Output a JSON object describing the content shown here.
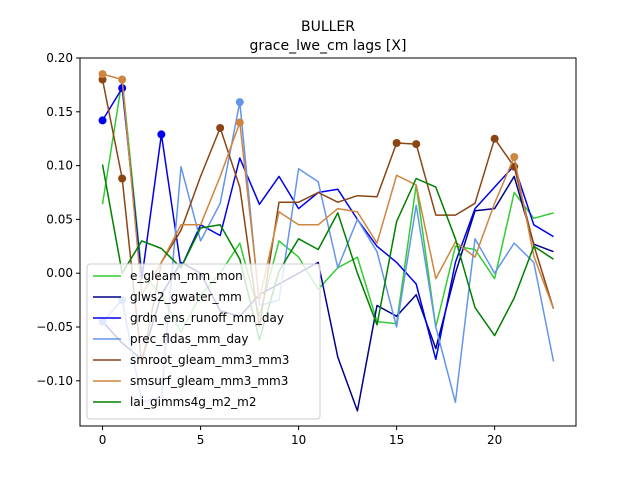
{
  "chart_data": {
    "type": "line",
    "title": "BULLER",
    "subtitle": "grace_lwe_cm lags [X]",
    "xlabel": "",
    "ylabel": "",
    "xlim": [
      -1.15,
      24.15
    ],
    "ylim": [
      -0.142,
      0.2
    ],
    "xticks": [
      0,
      5,
      10,
      15,
      20
    ],
    "yticks": [
      -0.1,
      -0.05,
      0.0,
      0.05,
      0.1,
      0.15,
      0.2
    ],
    "ytick_labels": [
      "−0.10",
      "−0.05",
      "0.00",
      "0.05",
      "0.10",
      "0.15",
      "0.20"
    ],
    "legend_position": "lower-left",
    "x": [
      0,
      1,
      2,
      3,
      4,
      5,
      6,
      7,
      8,
      9,
      10,
      11,
      12,
      13,
      14,
      15,
      16,
      17,
      18,
      19,
      20,
      21,
      22,
      23
    ],
    "series": [
      {
        "name": "e_gleam_mm_mon",
        "color": "#33cc33",
        "values": [
          0.064,
          0.18,
          0.0,
          -0.02,
          -0.055,
          -0.02,
          0.0,
          0.028,
          -0.04,
          0.03,
          0.015,
          -0.015,
          0.005,
          0.015,
          -0.045,
          -0.047,
          0.082,
          -0.05,
          0.025,
          0.022,
          -0.005,
          0.075,
          0.051,
          0.056
        ],
        "markers": []
      },
      {
        "name": "glws2_gwater_mm",
        "color": "#00008b",
        "values": [
          -0.045,
          -0.065,
          -0.08,
          -0.02,
          0.01,
          0.0,
          -0.035,
          -0.04,
          -0.02,
          -0.01,
          0.0,
          0.01,
          -0.078,
          -0.128,
          -0.03,
          -0.04,
          -0.02,
          -0.07,
          0.0,
          0.058,
          0.06,
          0.09,
          0.027,
          0.02
        ],
        "markers": []
      },
      {
        "name": "grdn_ens_runoff_mm_day",
        "color": "#0000ee",
        "values": [
          0.142,
          0.172,
          -0.005,
          0.129,
          0.005,
          0.045,
          0.035,
          0.107,
          0.064,
          0.09,
          0.06,
          0.075,
          0.078,
          0.05,
          0.025,
          0.01,
          -0.01,
          -0.08,
          0.01,
          0.06,
          0.08,
          0.1,
          0.045,
          0.034
        ],
        "markers": [
          0,
          1,
          3
        ]
      },
      {
        "name": "prec_fldas_mm_day",
        "color": "#6495ed",
        "values": [
          -0.045,
          -0.025,
          -0.12,
          -0.115,
          0.099,
          0.03,
          0.065,
          0.159,
          -0.03,
          -0.025,
          0.097,
          0.085,
          0.005,
          0.05,
          0.02,
          -0.05,
          0.063,
          -0.05,
          -0.12,
          0.032,
          0.0,
          0.028,
          0.01,
          -0.082
        ],
        "markers": [
          0,
          1,
          7
        ]
      },
      {
        "name": "smroot_gleam_mm3_mm3",
        "color": "#8b4513",
        "values": [
          0.18,
          0.088,
          -0.085,
          0.01,
          0.04,
          0.09,
          0.135,
          0.08,
          -0.05,
          0.066,
          0.066,
          0.075,
          0.066,
          0.072,
          0.071,
          0.121,
          0.12,
          0.054,
          0.054,
          0.065,
          0.125,
          0.099,
          0.026,
          -0.033
        ],
        "markers": [
          0,
          1,
          6,
          15,
          16,
          20,
          21
        ]
      },
      {
        "name": "smsurf_gleam_mm3_mm3",
        "color": "#cd853f",
        "values": [
          0.185,
          0.18,
          -0.02,
          0.01,
          0.045,
          0.045,
          0.09,
          0.14,
          -0.025,
          0.057,
          0.045,
          0.045,
          0.06,
          0.057,
          0.028,
          0.091,
          0.082,
          -0.005,
          0.029,
          0.015,
          0.065,
          0.108,
          0.016,
          -0.033
        ],
        "markers": [
          0,
          1,
          7,
          21
        ]
      },
      {
        "name": "lai_gimms4g_m2_m2",
        "color": "#008000",
        "values": [
          0.101,
          0.0,
          0.03,
          0.023,
          0.005,
          0.042,
          0.045,
          0.013,
          -0.062,
          0.002,
          0.032,
          0.022,
          0.056,
          0.0,
          -0.048,
          0.048,
          0.088,
          0.08,
          0.032,
          -0.032,
          -0.058,
          -0.023,
          0.025,
          0.013
        ],
        "markers": []
      }
    ]
  }
}
